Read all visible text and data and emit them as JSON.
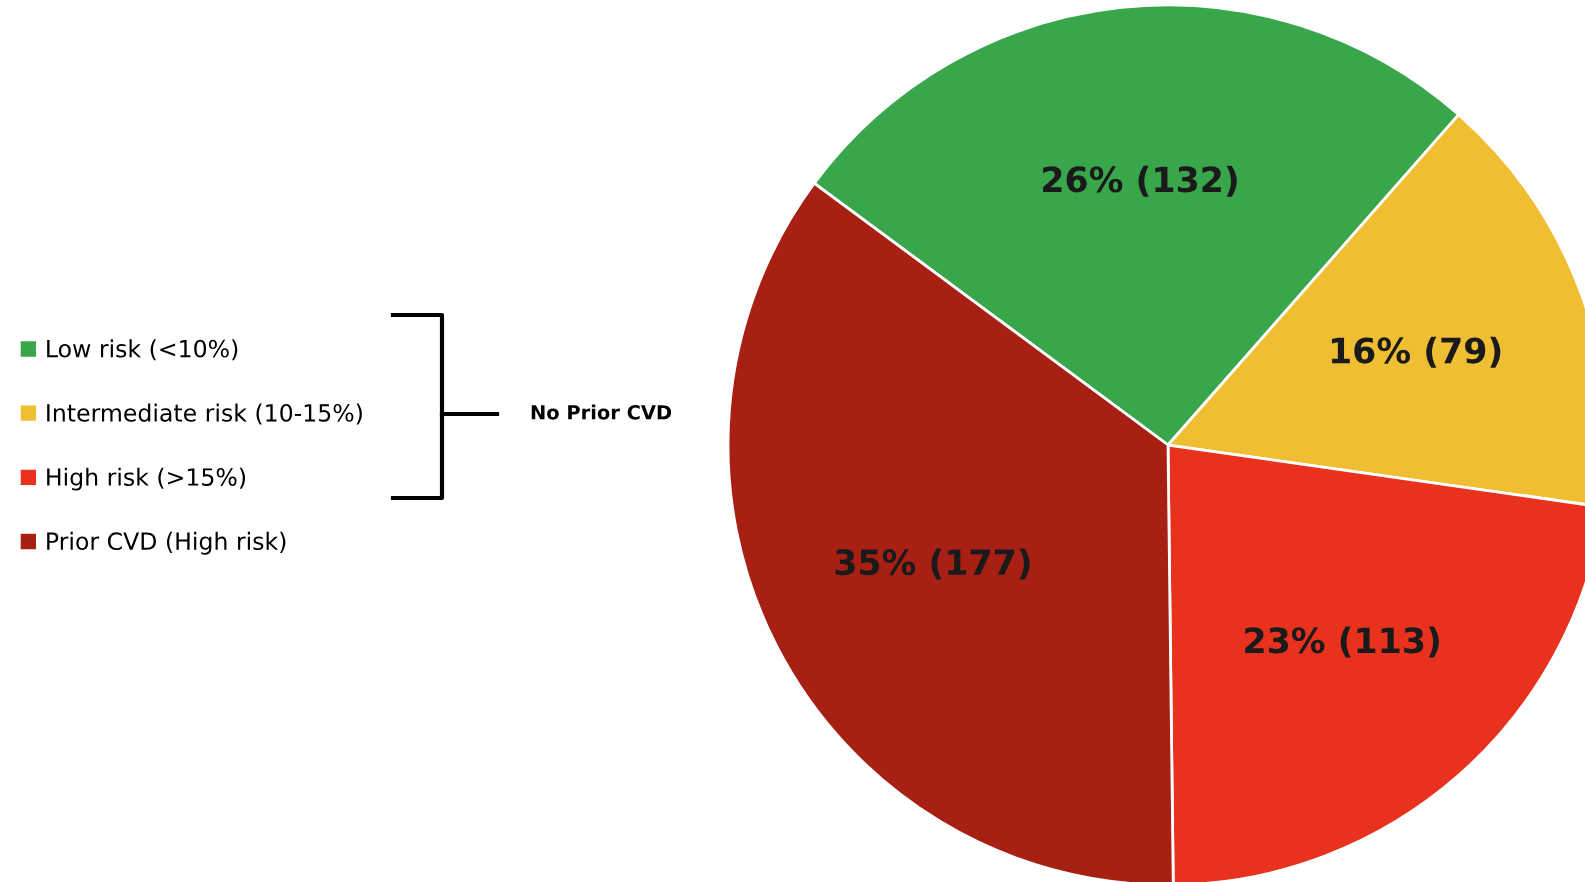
{
  "chart_data": {
    "type": "pie",
    "categories": [
      "Low risk (<10%)",
      "Intermediate risk (10-15%)",
      "High risk (>15%)",
      "Prior CVD (High risk)"
    ],
    "values": [
      132,
      79,
      113,
      177
    ],
    "colors": [
      "#3aa64c",
      "#f0be32",
      "#e8321e",
      "#a82014"
    ],
    "value_labels": [
      "26% (132)",
      "16% (79)",
      "23% (113)",
      "35% (177)"
    ],
    "legend": "left",
    "annotations": [
      "No Prior CVD"
    ]
  }
}
